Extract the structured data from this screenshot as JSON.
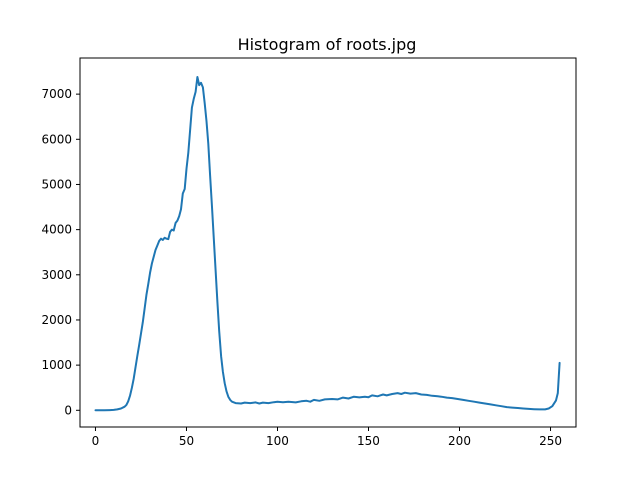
{
  "chart_data": {
    "type": "line",
    "title": "Histogram of roots.jpg",
    "xlabel": "",
    "ylabel": "",
    "xlim": [
      -8.5,
      264
    ],
    "ylim": [
      -370,
      7800
    ],
    "x_ticks": [
      0,
      50,
      100,
      150,
      200,
      250
    ],
    "y_ticks": [
      0,
      1000,
      2000,
      3000,
      4000,
      5000,
      6000,
      7000
    ],
    "grid": false,
    "legend": "none",
    "series": [
      {
        "color": "#1f77b4",
        "points": [
          [
            0,
            0
          ],
          [
            5,
            0
          ],
          [
            8,
            5
          ],
          [
            10,
            8
          ],
          [
            12,
            20
          ],
          [
            14,
            40
          ],
          [
            16,
            80
          ],
          [
            17,
            120
          ],
          [
            18,
            200
          ],
          [
            19,
            330
          ],
          [
            20,
            500
          ],
          [
            21,
            700
          ],
          [
            22,
            950
          ],
          [
            23,
            1200
          ],
          [
            24,
            1450
          ],
          [
            25,
            1700
          ],
          [
            26,
            1950
          ],
          [
            27,
            2250
          ],
          [
            28,
            2550
          ],
          [
            29,
            2800
          ],
          [
            30,
            3050
          ],
          [
            31,
            3250
          ],
          [
            32,
            3400
          ],
          [
            33,
            3550
          ],
          [
            34,
            3650
          ],
          [
            35,
            3750
          ],
          [
            36,
            3800
          ],
          [
            37,
            3770
          ],
          [
            38,
            3820
          ],
          [
            39,
            3800
          ],
          [
            40,
            3790
          ],
          [
            41,
            3950
          ],
          [
            42,
            4000
          ],
          [
            43,
            3980
          ],
          [
            44,
            4150
          ],
          [
            45,
            4200
          ],
          [
            46,
            4300
          ],
          [
            47,
            4450
          ],
          [
            48,
            4800
          ],
          [
            49,
            4900
          ],
          [
            50,
            5350
          ],
          [
            51,
            5700
          ],
          [
            52,
            6200
          ],
          [
            53,
            6700
          ],
          [
            54,
            6900
          ],
          [
            55,
            7050
          ],
          [
            56,
            7380
          ],
          [
            57,
            7200
          ],
          [
            58,
            7250
          ],
          [
            59,
            7150
          ],
          [
            60,
            6800
          ],
          [
            61,
            6400
          ],
          [
            62,
            5900
          ],
          [
            63,
            5200
          ],
          [
            64,
            4500
          ],
          [
            65,
            3800
          ],
          [
            66,
            3100
          ],
          [
            67,
            2400
          ],
          [
            68,
            1750
          ],
          [
            69,
            1200
          ],
          [
            70,
            850
          ],
          [
            71,
            600
          ],
          [
            72,
            420
          ],
          [
            73,
            300
          ],
          [
            74,
            230
          ],
          [
            75,
            190
          ],
          [
            77,
            160
          ],
          [
            80,
            150
          ],
          [
            82,
            170
          ],
          [
            85,
            160
          ],
          [
            88,
            175
          ],
          [
            90,
            150
          ],
          [
            92,
            170
          ],
          [
            95,
            160
          ],
          [
            98,
            180
          ],
          [
            100,
            190
          ],
          [
            103,
            180
          ],
          [
            106,
            190
          ],
          [
            110,
            175
          ],
          [
            113,
            200
          ],
          [
            116,
            210
          ],
          [
            118,
            190
          ],
          [
            120,
            230
          ],
          [
            123,
            210
          ],
          [
            126,
            240
          ],
          [
            130,
            250
          ],
          [
            133,
            240
          ],
          [
            136,
            280
          ],
          [
            139,
            260
          ],
          [
            142,
            300
          ],
          [
            145,
            285
          ],
          [
            148,
            300
          ],
          [
            150,
            290
          ],
          [
            152,
            330
          ],
          [
            155,
            310
          ],
          [
            158,
            350
          ],
          [
            160,
            330
          ],
          [
            163,
            360
          ],
          [
            166,
            380
          ],
          [
            168,
            360
          ],
          [
            170,
            390
          ],
          [
            173,
            370
          ],
          [
            176,
            380
          ],
          [
            179,
            350
          ],
          [
            182,
            340
          ],
          [
            185,
            320
          ],
          [
            188,
            310
          ],
          [
            190,
            300
          ],
          [
            193,
            280
          ],
          [
            196,
            270
          ],
          [
            199,
            250
          ],
          [
            202,
            230
          ],
          [
            205,
            210
          ],
          [
            208,
            190
          ],
          [
            211,
            170
          ],
          [
            214,
            150
          ],
          [
            217,
            130
          ],
          [
            220,
            110
          ],
          [
            223,
            90
          ],
          [
            226,
            70
          ],
          [
            229,
            60
          ],
          [
            232,
            50
          ],
          [
            235,
            40
          ],
          [
            238,
            30
          ],
          [
            241,
            25
          ],
          [
            244,
            20
          ],
          [
            247,
            20
          ],
          [
            249,
            40
          ],
          [
            251,
            90
          ],
          [
            253,
            220
          ],
          [
            254,
            380
          ],
          [
            255,
            1050
          ]
        ]
      }
    ]
  }
}
